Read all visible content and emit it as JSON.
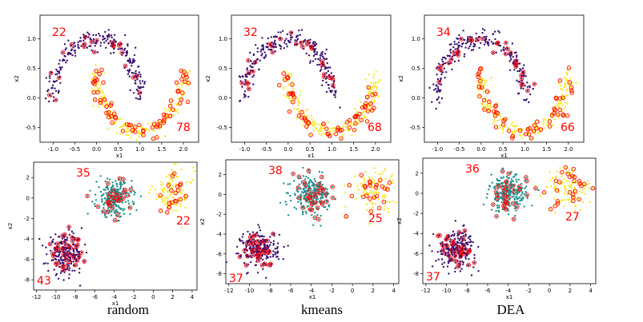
{
  "colors": {
    "cluster_a": "#3b0f70",
    "cluster_b": "#fde725",
    "cluster_c": "#21918c",
    "marker": "#ff0000",
    "count": "#ff0000",
    "axes": "#000000"
  },
  "captions": [
    "random",
    "kmeans",
    "DEA"
  ],
  "chart_data": [
    {
      "type": "scatter",
      "dataset": "moons",
      "method": "random",
      "xlabel": "x1",
      "ylabel": "x2",
      "xlim": [
        -1.3,
        2.35
      ],
      "ylim": [
        -0.75,
        1.4
      ],
      "xticks": [
        "-1.0",
        "-0.5",
        "0.0",
        "0.5",
        "1.0",
        "1.5",
        "2.0"
      ],
      "yticks": [
        "-0.5",
        "0.0",
        "0.5",
        "1.0"
      ],
      "annotations": [
        "22",
        "78"
      ],
      "series": [
        {
          "name": "upper moon",
          "color": "#3b0f70",
          "selected": 22
        },
        {
          "name": "lower moon",
          "color": "#fde725",
          "selected": 78
        }
      ]
    },
    {
      "type": "scatter",
      "dataset": "moons",
      "method": "kmeans",
      "xlabel": "x1",
      "ylabel": "x2",
      "xlim": [
        -1.3,
        2.35
      ],
      "ylim": [
        -0.75,
        1.4
      ],
      "xticks": [
        "-1.0",
        "-0.5",
        "0.0",
        "0.5",
        "1.0",
        "1.5",
        "2.0"
      ],
      "yticks": [
        "-0.5",
        "0.0",
        "0.5",
        "1.0"
      ],
      "annotations": [
        "32",
        "68"
      ],
      "series": [
        {
          "name": "upper moon",
          "color": "#3b0f70",
          "selected": 32
        },
        {
          "name": "lower moon",
          "color": "#fde725",
          "selected": 68
        }
      ]
    },
    {
      "type": "scatter",
      "dataset": "moons",
      "method": "DEA",
      "xlabel": "x1",
      "ylabel": "x2",
      "xlim": [
        -1.3,
        2.35
      ],
      "ylim": [
        -0.75,
        1.4
      ],
      "xticks": [
        "-1.0",
        "-0.5",
        "0.0",
        "0.5",
        "1.0",
        "1.5",
        "2.0"
      ],
      "yticks": [
        "-0.5",
        "0.0",
        "0.5",
        "1.0"
      ],
      "annotations": [
        "34",
        "66"
      ],
      "series": [
        {
          "name": "upper moon",
          "color": "#3b0f70",
          "selected": 34
        },
        {
          "name": "lower moon",
          "color": "#fde725",
          "selected": 66
        }
      ]
    },
    {
      "type": "scatter",
      "dataset": "blobs",
      "method": "random",
      "xlabel": "x1",
      "ylabel": "x2",
      "xlim": [
        -12.3,
        4.5
      ],
      "ylim": [
        -9.0,
        3.5
      ],
      "xticks": [
        "-12",
        "-10",
        "-8",
        "-6",
        "-4",
        "-2",
        "0",
        "2",
        "4"
      ],
      "yticks": [
        "-8",
        "-6",
        "-4",
        "-2",
        "0",
        "2"
      ],
      "annotations": [
        "35",
        "22",
        "43"
      ],
      "series": [
        {
          "name": "center blob",
          "color": "#21918c",
          "center": [
            -4,
            0
          ],
          "selected": 35
        },
        {
          "name": "right blob",
          "color": "#fde725",
          "center": [
            2,
            0.5
          ],
          "selected": 22
        },
        {
          "name": "lower-left blob",
          "color": "#3b0f70",
          "center": [
            -9,
            -5.5
          ],
          "selected": 43
        }
      ]
    },
    {
      "type": "scatter",
      "dataset": "blobs",
      "method": "kmeans",
      "xlabel": "x1",
      "ylabel": "x2",
      "xlim": [
        -12.3,
        4.5
      ],
      "ylim": [
        -9.0,
        3.5
      ],
      "xticks": [
        "-12",
        "-10",
        "-8",
        "-6",
        "-4",
        "-2",
        "0",
        "2",
        "4"
      ],
      "yticks": [
        "-8",
        "-6",
        "-4",
        "-2",
        "0",
        "2"
      ],
      "annotations": [
        "38",
        "25",
        "37"
      ],
      "series": [
        {
          "name": "center blob",
          "color": "#21918c",
          "center": [
            -4,
            0
          ],
          "selected": 38
        },
        {
          "name": "right blob",
          "color": "#fde725",
          "center": [
            2,
            0.5
          ],
          "selected": 25
        },
        {
          "name": "lower-left blob",
          "color": "#3b0f70",
          "center": [
            -9,
            -5.5
          ],
          "selected": 37
        }
      ]
    },
    {
      "type": "scatter",
      "dataset": "blobs",
      "method": "DEA",
      "xlabel": "x1",
      "ylabel": "x2",
      "xlim": [
        -12.3,
        4.5
      ],
      "ylim": [
        -9.0,
        3.5
      ],
      "xticks": [
        "-12",
        "-10",
        "-8",
        "-6",
        "-4",
        "-2",
        "0",
        "2",
        "4"
      ],
      "yticks": [
        "-8",
        "-6",
        "-4",
        "-2",
        "0",
        "2"
      ],
      "annotations": [
        "36",
        "27",
        "37"
      ],
      "series": [
        {
          "name": "center blob",
          "color": "#21918c",
          "center": [
            -4,
            0
          ],
          "selected": 36
        },
        {
          "name": "right blob",
          "color": "#fde725",
          "center": [
            2,
            0.5
          ],
          "selected": 27
        },
        {
          "name": "lower-left blob",
          "color": "#3b0f70",
          "center": [
            -9,
            -5.5
          ],
          "selected": 37
        }
      ]
    }
  ]
}
